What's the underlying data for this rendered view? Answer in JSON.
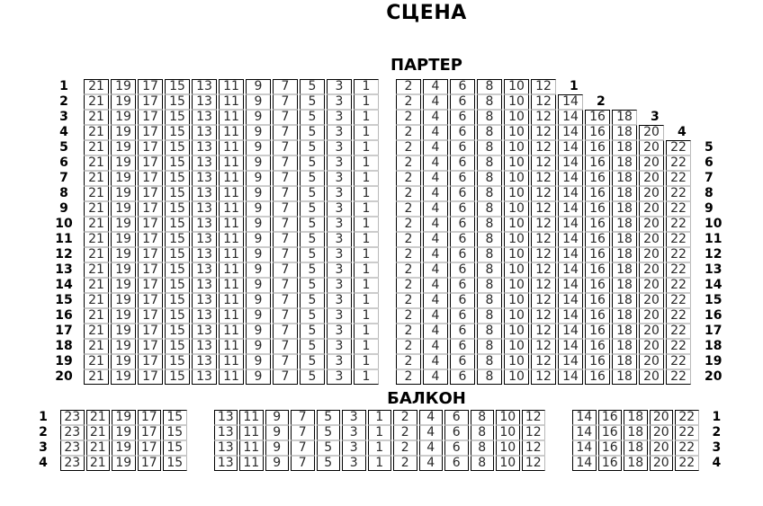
{
  "stage_title": "СЦЕНА",
  "colors": {
    "background": "#ffffff",
    "seat_border_dark": "#000000",
    "seat_border_light": "#cccccc",
    "seat_text": "#2a2a2a",
    "label_text": "#000000"
  },
  "sections": [
    {
      "id": "parterre",
      "title": "ПАРТЕР",
      "rows": [
        {
          "label": "1",
          "blocks": [
            [
              21,
              19,
              17,
              15,
              13,
              11,
              9,
              7,
              5,
              3,
              1
            ],
            [
              2,
              4,
              6,
              8,
              10,
              12
            ]
          ]
        },
        {
          "label": "2",
          "blocks": [
            [
              21,
              19,
              17,
              15,
              13,
              11,
              9,
              7,
              5,
              3,
              1
            ],
            [
              2,
              4,
              6,
              8,
              10,
              12,
              14
            ]
          ]
        },
        {
          "label": "3",
          "blocks": [
            [
              21,
              19,
              17,
              15,
              13,
              11,
              9,
              7,
              5,
              3,
              1
            ],
            [
              2,
              4,
              6,
              8,
              10,
              12,
              14,
              16,
              18
            ]
          ]
        },
        {
          "label": "4",
          "blocks": [
            [
              21,
              19,
              17,
              15,
              13,
              11,
              9,
              7,
              5,
              3,
              1
            ],
            [
              2,
              4,
              6,
              8,
              10,
              12,
              14,
              16,
              18,
              20
            ]
          ]
        },
        {
          "label": "5",
          "blocks": [
            [
              21,
              19,
              17,
              15,
              13,
              11,
              9,
              7,
              5,
              3,
              1
            ],
            [
              2,
              4,
              6,
              8,
              10,
              12,
              14,
              16,
              18,
              20,
              22
            ]
          ]
        },
        {
          "label": "6",
          "blocks": [
            [
              21,
              19,
              17,
              15,
              13,
              11,
              9,
              7,
              5,
              3,
              1
            ],
            [
              2,
              4,
              6,
              8,
              10,
              12,
              14,
              16,
              18,
              20,
              22
            ]
          ]
        },
        {
          "label": "7",
          "blocks": [
            [
              21,
              19,
              17,
              15,
              13,
              11,
              9,
              7,
              5,
              3,
              1
            ],
            [
              2,
              4,
              6,
              8,
              10,
              12,
              14,
              16,
              18,
              20,
              22
            ]
          ]
        },
        {
          "label": "8",
          "blocks": [
            [
              21,
              19,
              17,
              15,
              13,
              11,
              9,
              7,
              5,
              3,
              1
            ],
            [
              2,
              4,
              6,
              8,
              10,
              12,
              14,
              16,
              18,
              20,
              22
            ]
          ]
        },
        {
          "label": "9",
          "blocks": [
            [
              21,
              19,
              17,
              15,
              13,
              11,
              9,
              7,
              5,
              3,
              1
            ],
            [
              2,
              4,
              6,
              8,
              10,
              12,
              14,
              16,
              18,
              20,
              22
            ]
          ]
        },
        {
          "label": "10",
          "blocks": [
            [
              21,
              19,
              17,
              15,
              13,
              11,
              9,
              7,
              5,
              3,
              1
            ],
            [
              2,
              4,
              6,
              8,
              10,
              12,
              14,
              16,
              18,
              20,
              22
            ]
          ]
        },
        {
          "label": "11",
          "blocks": [
            [
              21,
              19,
              17,
              15,
              13,
              11,
              9,
              7,
              5,
              3,
              1
            ],
            [
              2,
              4,
              6,
              8,
              10,
              12,
              14,
              16,
              18,
              20,
              22
            ]
          ]
        },
        {
          "label": "12",
          "blocks": [
            [
              21,
              19,
              17,
              15,
              13,
              11,
              9,
              7,
              5,
              3,
              1
            ],
            [
              2,
              4,
              6,
              8,
              10,
              12,
              14,
              16,
              18,
              20,
              22
            ]
          ]
        },
        {
          "label": "13",
          "blocks": [
            [
              21,
              19,
              17,
              15,
              13,
              11,
              9,
              7,
              5,
              3,
              1
            ],
            [
              2,
              4,
              6,
              8,
              10,
              12,
              14,
              16,
              18,
              20,
              22
            ]
          ]
        },
        {
          "label": "14",
          "blocks": [
            [
              21,
              19,
              17,
              15,
              13,
              11,
              9,
              7,
              5,
              3,
              1
            ],
            [
              2,
              4,
              6,
              8,
              10,
              12,
              14,
              16,
              18,
              20,
              22
            ]
          ]
        },
        {
          "label": "15",
          "blocks": [
            [
              21,
              19,
              17,
              15,
              13,
              11,
              9,
              7,
              5,
              3,
              1
            ],
            [
              2,
              4,
              6,
              8,
              10,
              12,
              14,
              16,
              18,
              20,
              22
            ]
          ]
        },
        {
          "label": "16",
          "blocks": [
            [
              21,
              19,
              17,
              15,
              13,
              11,
              9,
              7,
              5,
              3,
              1
            ],
            [
              2,
              4,
              6,
              8,
              10,
              12,
              14,
              16,
              18,
              20,
              22
            ]
          ]
        },
        {
          "label": "17",
          "blocks": [
            [
              21,
              19,
              17,
              15,
              13,
              11,
              9,
              7,
              5,
              3,
              1
            ],
            [
              2,
              4,
              6,
              8,
              10,
              12,
              14,
              16,
              18,
              20,
              22
            ]
          ]
        },
        {
          "label": "18",
          "blocks": [
            [
              21,
              19,
              17,
              15,
              13,
              11,
              9,
              7,
              5,
              3,
              1
            ],
            [
              2,
              4,
              6,
              8,
              10,
              12,
              14,
              16,
              18,
              20,
              22
            ]
          ]
        },
        {
          "label": "19",
          "blocks": [
            [
              21,
              19,
              17,
              15,
              13,
              11,
              9,
              7,
              5,
              3,
              1
            ],
            [
              2,
              4,
              6,
              8,
              10,
              12,
              14,
              16,
              18,
              20,
              22
            ]
          ]
        },
        {
          "label": "20",
          "blocks": [
            [
              21,
              19,
              17,
              15,
              13,
              11,
              9,
              7,
              5,
              3,
              1
            ],
            [
              2,
              4,
              6,
              8,
              10,
              12,
              14,
              16,
              18,
              20,
              22
            ]
          ]
        }
      ]
    },
    {
      "id": "balcony",
      "title": "БАЛКОН",
      "rows": [
        {
          "label": "1",
          "blocks": [
            [
              23,
              21,
              19,
              17,
              15
            ],
            [
              13,
              11,
              9,
              7,
              5,
              3,
              1,
              2,
              4,
              6,
              8,
              10,
              12
            ],
            [
              14,
              16,
              18,
              20,
              22
            ]
          ]
        },
        {
          "label": "2",
          "blocks": [
            [
              23,
              21,
              19,
              17,
              15
            ],
            [
              13,
              11,
              9,
              7,
              5,
              3,
              1,
              2,
              4,
              6,
              8,
              10,
              12
            ],
            [
              14,
              16,
              18,
              20,
              22
            ]
          ]
        },
        {
          "label": "3",
          "blocks": [
            [
              23,
              21,
              19,
              17,
              15
            ],
            [
              13,
              11,
              9,
              7,
              5,
              3,
              1,
              2,
              4,
              6,
              8,
              10,
              12
            ],
            [
              14,
              16,
              18,
              20,
              22
            ]
          ]
        },
        {
          "label": "4",
          "blocks": [
            [
              23,
              21,
              19,
              17,
              15
            ],
            [
              13,
              11,
              9,
              7,
              5,
              3,
              1,
              2,
              4,
              6,
              8,
              10,
              12
            ],
            [
              14,
              16,
              18,
              20,
              22
            ]
          ]
        }
      ]
    }
  ]
}
